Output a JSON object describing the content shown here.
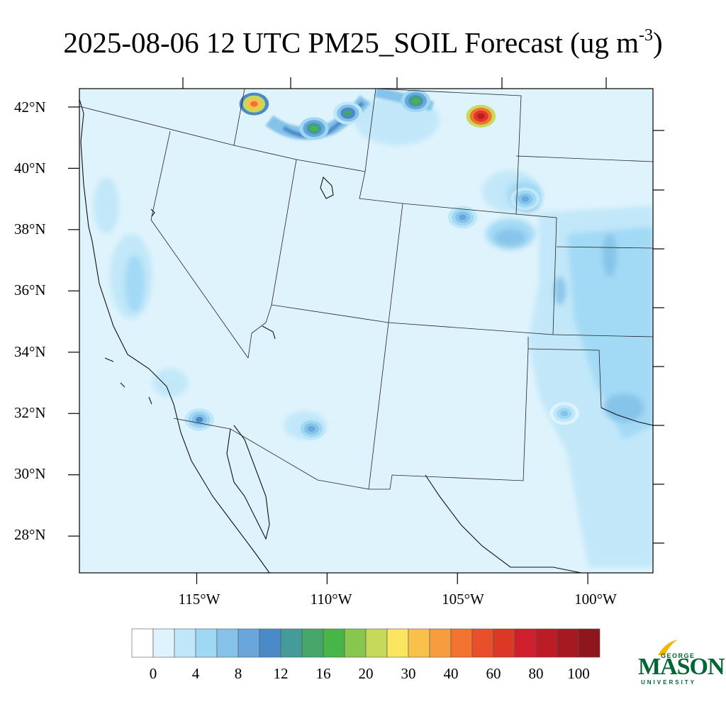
{
  "title": {
    "text": "2025-08-06 12 UTC PM25_SOIL Forecast (ug m",
    "superscript": "-3",
    "close": ")"
  },
  "map": {
    "lon_range": [
      -119.5,
      -97.5
    ],
    "lat_range": [
      26.8,
      42.6
    ],
    "lat_labels": [
      "42°N",
      "40°N",
      "38°N",
      "36°N",
      "34°N",
      "32°N",
      "30°N",
      "28°N"
    ],
    "lon_labels": [
      "115°W",
      "110°W",
      "105°W",
      "100°W"
    ],
    "background_color": "#dff3fc",
    "high_values": [
      {
        "lon": -104.1,
        "lat": 41.7,
        "value": 80
      },
      {
        "lon": -112.8,
        "lat": 42.1,
        "value": 40
      },
      {
        "lon": -110.5,
        "lat": 41.3,
        "value": 16
      },
      {
        "lon": -109.2,
        "lat": 41.8,
        "value": 14
      },
      {
        "lon": -106.6,
        "lat": 42.2,
        "value": 16
      },
      {
        "lon": -114.9,
        "lat": 31.8,
        "value": 10
      },
      {
        "lon": -110.6,
        "lat": 31.5,
        "value": 8
      },
      {
        "lon": -104.8,
        "lat": 38.4,
        "value": 8
      },
      {
        "lon": -102.4,
        "lat": 39.0,
        "value": 8
      },
      {
        "lon": -100.9,
        "lat": 32.0,
        "value": 7
      }
    ]
  },
  "colorbar": {
    "colors": [
      "#ffffff",
      "#dff3fc",
      "#c0e7f9",
      "#9fd8f5",
      "#84c2e9",
      "#68a6dc",
      "#4a8ac8",
      "#459a9a",
      "#46a66a",
      "#47b548",
      "#88c64d",
      "#c6d95a",
      "#f9e55f",
      "#f9c04c",
      "#f59d3f",
      "#f2722f",
      "#e94f2a",
      "#db3826",
      "#d01f2c",
      "#bc1c26",
      "#a51921",
      "#8e161c"
    ],
    "labels": [
      "0",
      "4",
      "8",
      "12",
      "16",
      "20",
      "30",
      "40",
      "60",
      "80",
      "100"
    ]
  },
  "logo": {
    "line1": "GEORGE",
    "line2": "MASON",
    "line3": "UNIVERSITY",
    "color": "#006633"
  }
}
